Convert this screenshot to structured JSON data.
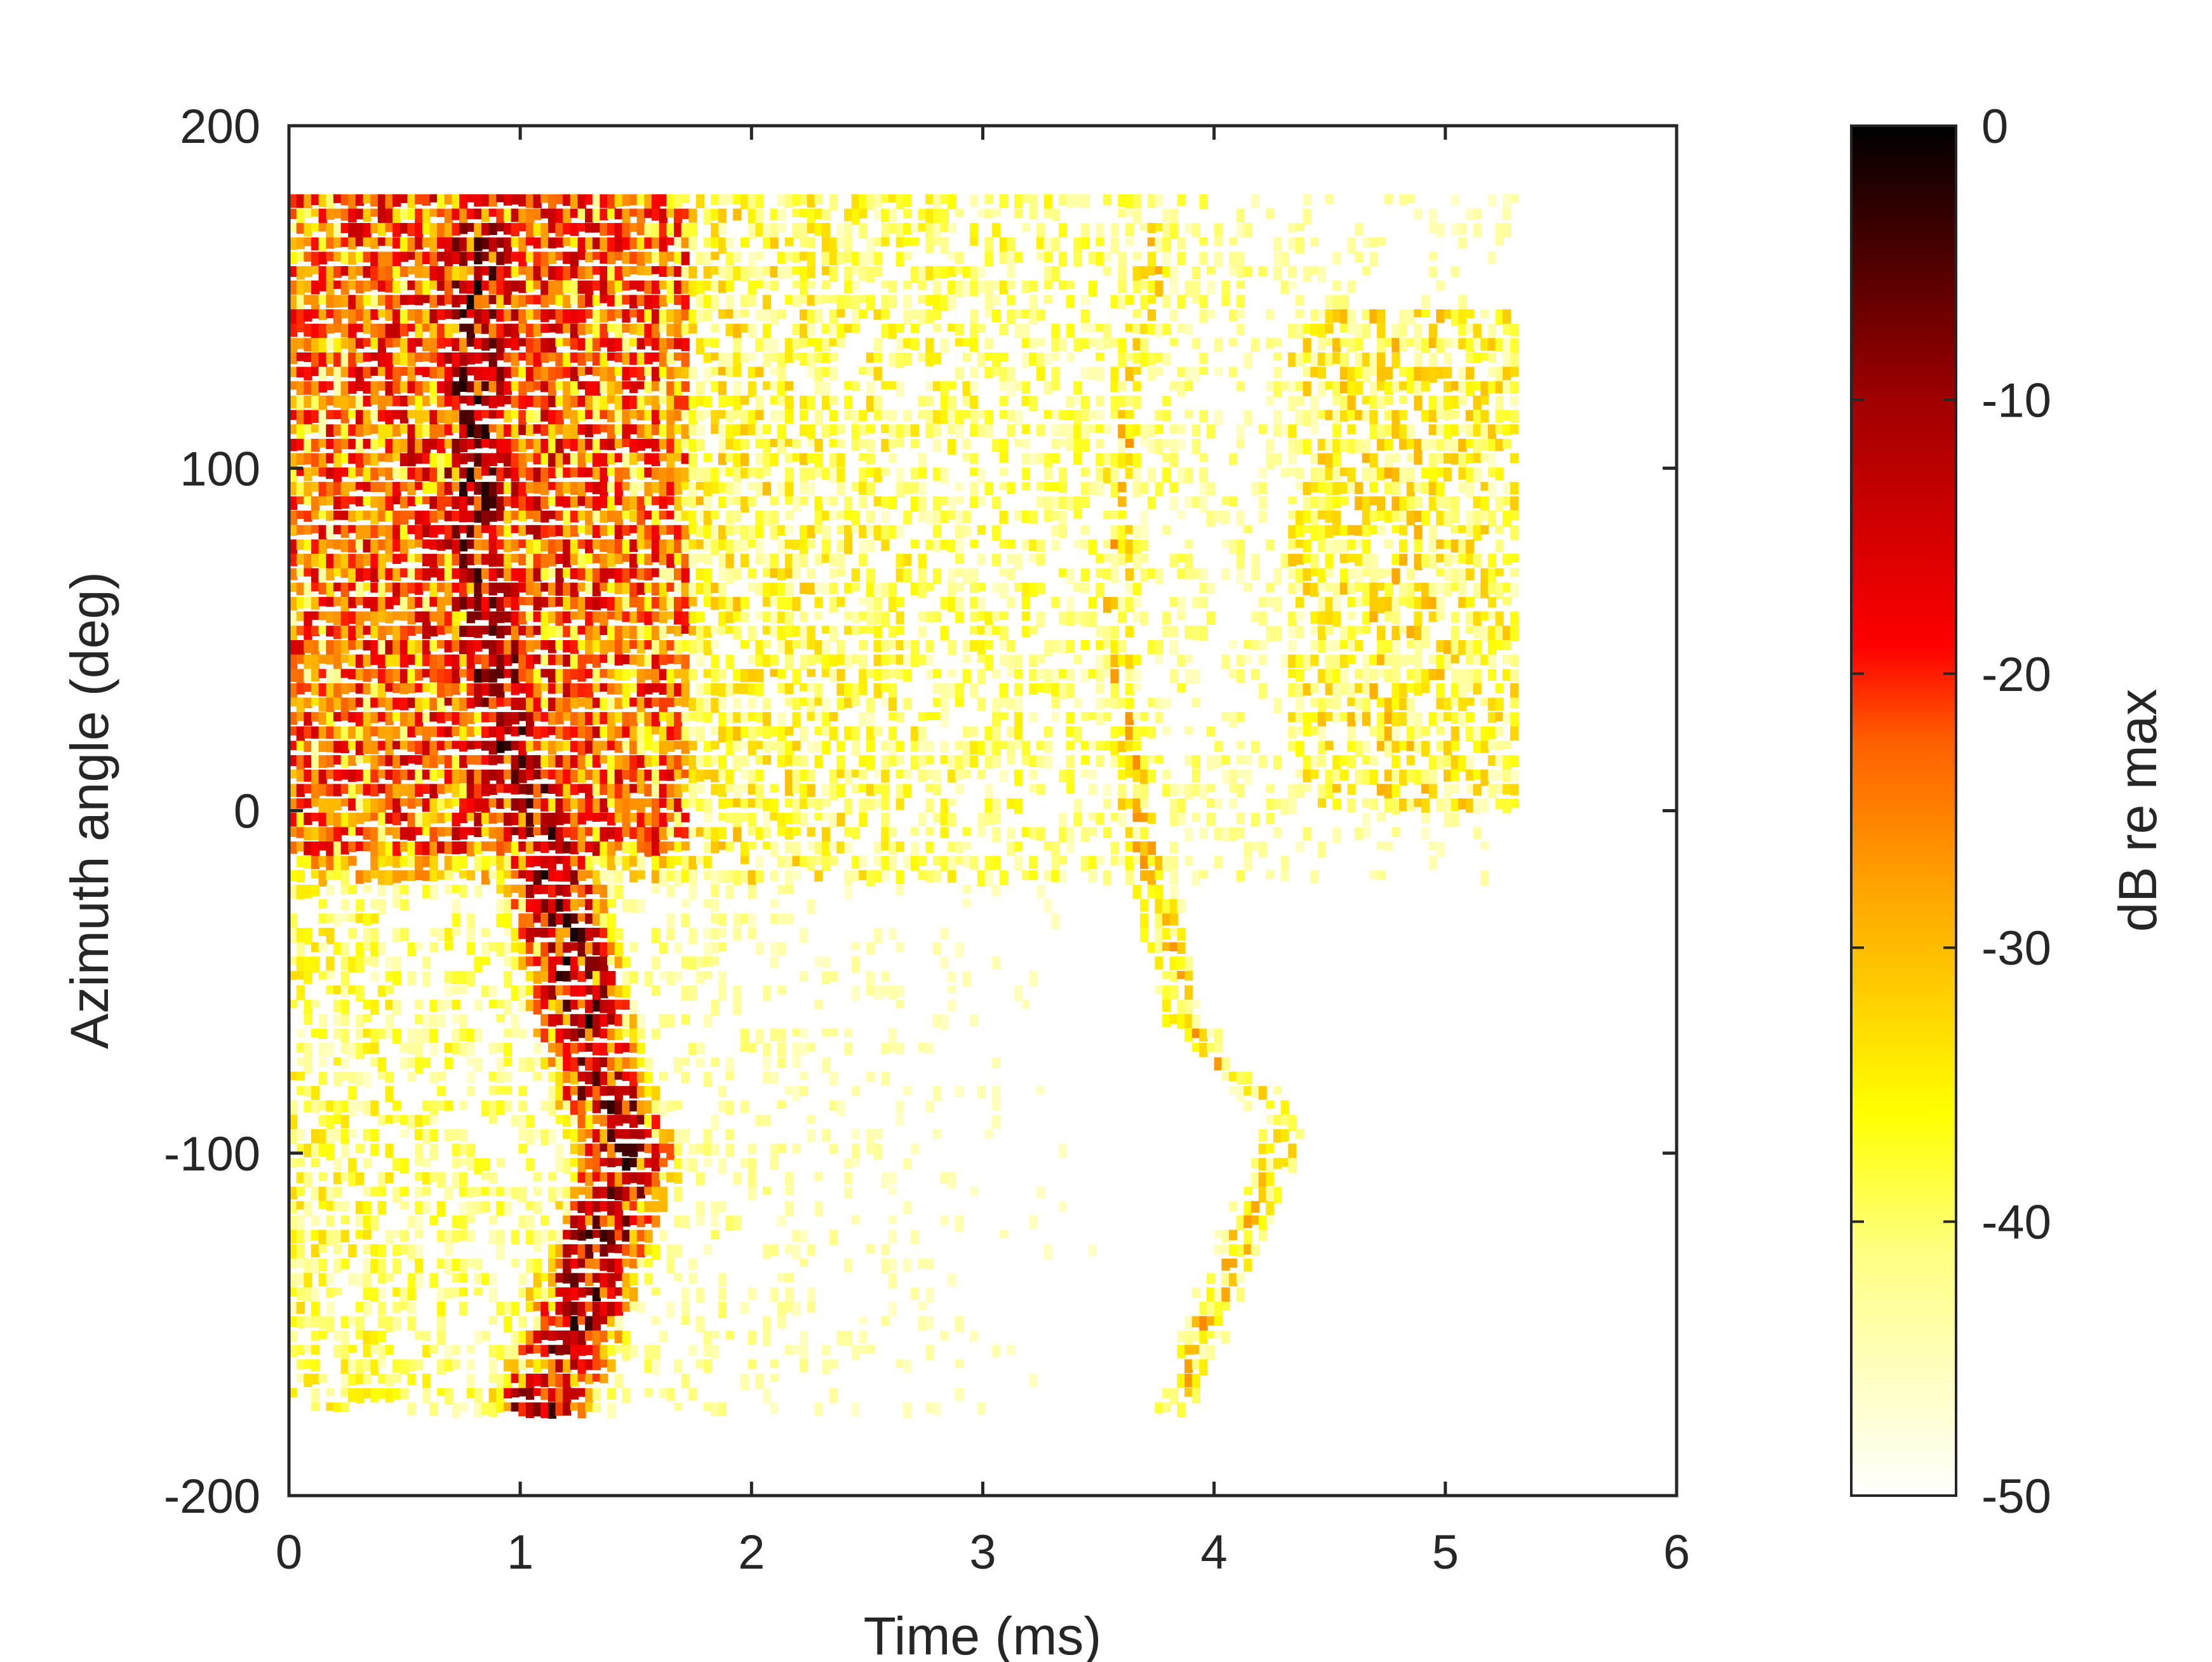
{
  "chart_data": {
    "type": "heatmap",
    "title": "",
    "xlabel": "Time (ms)",
    "ylabel": "Azimuth angle (deg)",
    "xlim": [
      0,
      6
    ],
    "ylim": [
      -200,
      200
    ],
    "xticks": [
      "0",
      "1",
      "2",
      "3",
      "4",
      "5",
      "6"
    ],
    "yticks": [
      "200",
      "100",
      "0",
      "-100",
      "-200"
    ],
    "data_extent": {
      "time_ms": [
        0,
        5.3
      ],
      "azimuth_deg": [
        -175,
        180
      ]
    },
    "colorbar": {
      "label": "dB re max",
      "range": [
        -50,
        0
      ],
      "ticks": [
        "0",
        "-10",
        "-20",
        "-30",
        "-40",
        "-50"
      ],
      "colormap": [
        "#ffffff",
        "#ffff80",
        "#ffff00",
        "#ffa000",
        "#ff6000",
        "#ff0000",
        "#a00000",
        "#000000"
      ]
    },
    "features": [
      {
        "name": "direct arrival ridge",
        "level_db": -8,
        "points": [
          [
            0.8,
            175
          ],
          [
            0.78,
            120
          ],
          [
            0.8,
            80
          ],
          [
            0.88,
            40
          ],
          [
            0.95,
            20
          ],
          [
            1.05,
            0
          ],
          [
            1.2,
            -40
          ],
          [
            1.3,
            -70
          ],
          [
            1.45,
            -100
          ],
          [
            1.3,
            -130
          ],
          [
            1.15,
            -160
          ],
          [
            1.05,
            -175
          ]
        ]
      },
      {
        "name": "reflection ridge",
        "level_db": -33,
        "points": [
          [
            3.75,
            175
          ],
          [
            3.6,
            120
          ],
          [
            3.55,
            60
          ],
          [
            3.65,
            0
          ],
          [
            3.85,
            -60
          ],
          [
            4.3,
            -90
          ],
          [
            4.0,
            -140
          ],
          [
            3.8,
            -175
          ]
        ]
      },
      {
        "name": "early reverberant region",
        "level_db": -18,
        "region": {
          "time_ms": [
            0,
            1.7
          ],
          "azimuth_deg": [
            -10,
            180
          ]
        }
      },
      {
        "name": "late upper region",
        "level_db": -36,
        "region": {
          "time_ms": [
            4.3,
            5.3
          ],
          "azimuth_deg": [
            0,
            150
          ]
        }
      }
    ]
  }
}
